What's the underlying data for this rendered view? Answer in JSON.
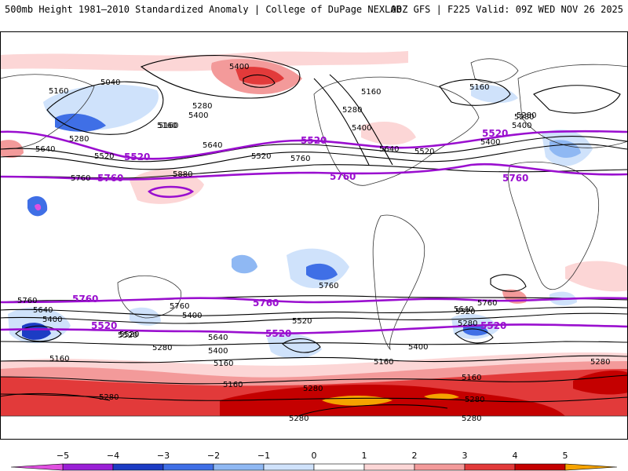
{
  "header": {
    "title": "500mb Height 1981–2010 Standardized Anomaly | College of DuPage NEXLAB",
    "run_info": "00Z GFS | F225 Valid: 09Z WED NOV 26 2025"
  },
  "colors": {
    "contour_black": "#000000",
    "contour_purple": "#9a0fcf",
    "land": "#333333",
    "pos1": "#fcd6d6",
    "pos2": "#f39a9a",
    "pos3": "#e23a3a",
    "pos4": "#c40000",
    "pos5": "#f5a300",
    "neg1": "#cfe2fb",
    "neg2": "#8fb8f3",
    "neg3": "#3f6fe6",
    "neg4": "#1c3cc4",
    "neg5": "#e050e0"
  },
  "contour_labels_black": [
    "5400",
    "5040",
    "5160",
    "5160",
    "5280",
    "5400",
    "5160",
    "5280",
    "5640",
    "5520",
    "5640",
    "5520",
    "5760",
    "5760",
    "5880",
    "5400",
    "5280",
    "5160",
    "5280",
    "5400",
    "5640",
    "5520",
    "5160",
    "5280",
    "5400",
    "5760",
    "5640",
    "5400",
    "5760",
    "5520",
    "5520",
    "5280",
    "5640",
    "5400",
    "5160",
    "5160",
    "5760",
    "5520",
    "5400",
    "5160",
    "5280",
    "5160",
    "5640",
    "5280",
    "5400",
    "5520",
    "5760",
    "5280",
    "5160",
    "5280",
    "5280",
    "5280",
    "5280"
  ],
  "contour_labels_purple": [
    "5520",
    "5520",
    "5520",
    "5760",
    "5760",
    "5760",
    "5760",
    "5760",
    "5520",
    "5520",
    "5520"
  ],
  "colorbar": {
    "ticks": [
      "−5",
      "−4",
      "−3",
      "−2",
      "−1",
      "0",
      "1",
      "2",
      "3",
      "4",
      "5"
    ],
    "bins": [
      {
        "label": "-5 to -4",
        "color": "#9a1fd6"
      },
      {
        "label": "-4 to -3",
        "color": "#1c3cc4"
      },
      {
        "label": "-3 to -2",
        "color": "#3f6fe6"
      },
      {
        "label": "-2 to -1",
        "color": "#8fb8f3"
      },
      {
        "label": "-1 to 0",
        "color": "#cfe2fb"
      },
      {
        "label": "0 to 1",
        "color": "#ffffff"
      },
      {
        "label": "1 to 2",
        "color": "#fcd6d6"
      },
      {
        "label": "2 to 3",
        "color": "#f39a9a"
      },
      {
        "label": "3 to 4",
        "color": "#e23a3a"
      },
      {
        "label": "4 to 5",
        "color": "#c40000"
      },
      {
        "label": "5+",
        "color": "#f5a300"
      }
    ],
    "low_end_color": "#e050e0",
    "high_end_color": "#f5a300"
  }
}
